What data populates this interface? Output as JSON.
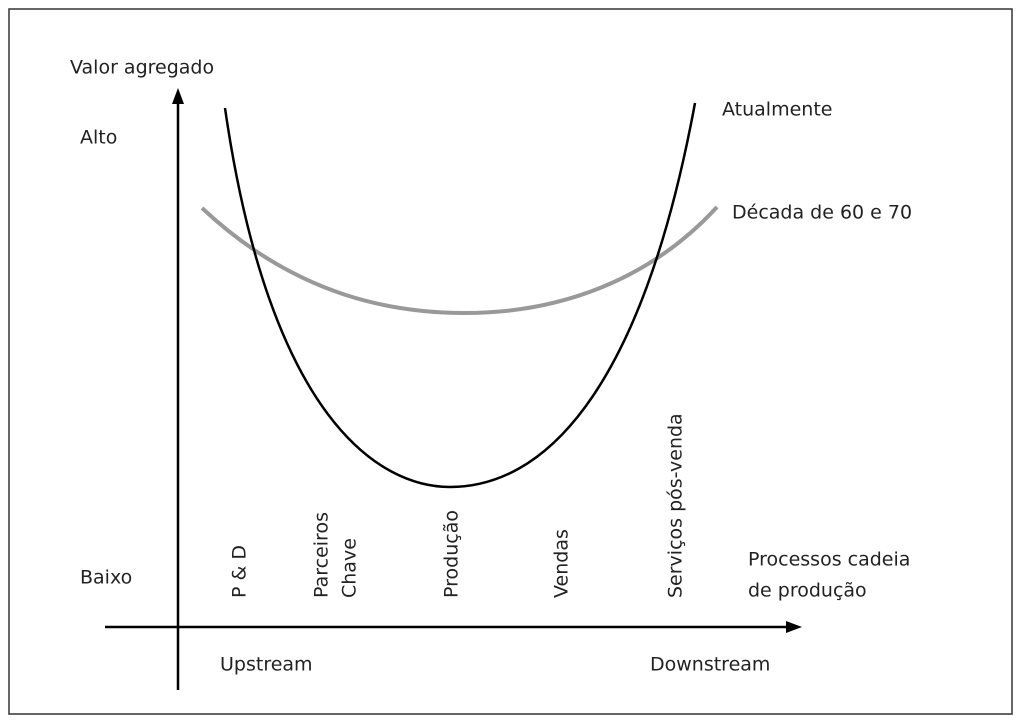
{
  "y_axis": {
    "label": "Valor agregado",
    "high": "Alto",
    "low": "Baixo"
  },
  "x_axis": {
    "label": [
      "Processos cadeia",
      "de produção"
    ],
    "left": "Upstream",
    "right": "Downstream"
  },
  "stages": [
    {
      "lines": [
        "P & D"
      ]
    },
    {
      "lines": [
        "Parceiros",
        "Chave"
      ]
    },
    {
      "lines": [
        "Produção"
      ]
    },
    {
      "lines": [
        "Vendas"
      ]
    },
    {
      "lines": [
        "Serviços pós-venda"
      ]
    }
  ],
  "curves": [
    {
      "label": "Atualmente"
    },
    {
      "label": "Década de 60 e 70"
    }
  ]
}
